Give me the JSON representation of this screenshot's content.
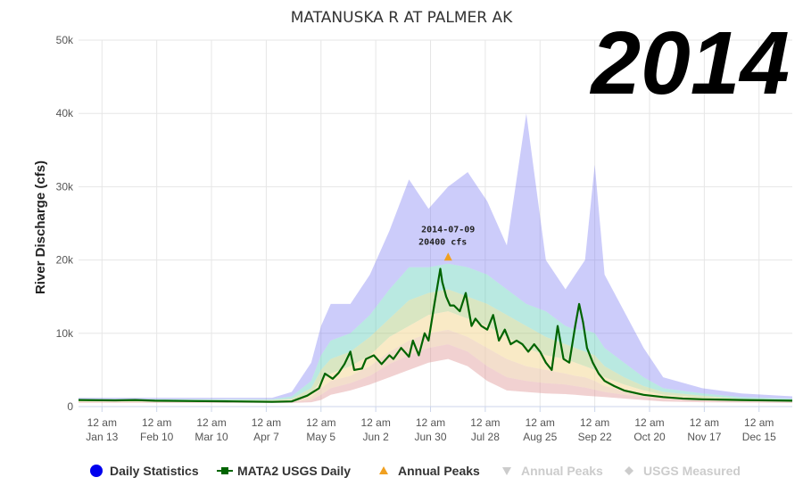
{
  "year_label": "2014",
  "chart_data": {
    "type": "area",
    "title": "MATANUSKA R AT PALMER AK",
    "xlabel": "",
    "ylabel": "River Discharge (cfs)",
    "ylim": [
      0,
      50000
    ],
    "y_ticks": [
      0,
      10000,
      20000,
      30000,
      40000,
      50000
    ],
    "y_tick_labels": [
      "0",
      "10k",
      "20k",
      "30k",
      "40k",
      "50k"
    ],
    "x_ticks": [
      {
        "line1": "12 am",
        "line2": "Jan 13",
        "day": 13
      },
      {
        "line1": "12 am",
        "line2": "Feb 10",
        "day": 41
      },
      {
        "line1": "12 am",
        "line2": "Mar 10",
        "day": 69
      },
      {
        "line1": "12 am",
        "line2": "Apr 7",
        "day": 97
      },
      {
        "line1": "12 am",
        "line2": "May 5",
        "day": 125
      },
      {
        "line1": "12 am",
        "line2": "Jun 2",
        "day": 153
      },
      {
        "line1": "12 am",
        "line2": "Jun 30",
        "day": 181
      },
      {
        "line1": "12 am",
        "line2": "Jul 28",
        "day": 209
      },
      {
        "line1": "12 am",
        "line2": "Aug 25",
        "day": 237
      },
      {
        "line1": "12 am",
        "line2": "Sep 22",
        "day": 265
      },
      {
        "line1": "12 am",
        "line2": "Oct 20",
        "day": 293
      },
      {
        "line1": "12 am",
        "line2": "Nov 17",
        "day": 321
      },
      {
        "line1": "12 am",
        "line2": "Dec 15",
        "day": 349
      }
    ],
    "x_range_days": [
      1,
      366
    ],
    "grid": true,
    "legend_position": "bottom",
    "series": [
      {
        "name": "Daily Statistics",
        "kind": "bands",
        "color": "#0000ee",
        "x_days": [
          1,
          100,
          110,
          120,
          125,
          130,
          140,
          150,
          160,
          170,
          180,
          190,
          200,
          210,
          220,
          230,
          240,
          250,
          255,
          260,
          265,
          270,
          280,
          290,
          300,
          320,
          340,
          366
        ],
        "max": [
          1200,
          1200,
          2000,
          6000,
          11000,
          14000,
          14000,
          18000,
          24000,
          31000,
          27000,
          30000,
          32000,
          28000,
          22000,
          40000,
          20000,
          16000,
          18000,
          20000,
          33000,
          18000,
          13000,
          8000,
          4000,
          2500,
          1800,
          1400
        ],
        "p90": [
          1000,
          1000,
          1400,
          3500,
          7000,
          9000,
          10000,
          12500,
          16000,
          19000,
          19000,
          19500,
          19000,
          18000,
          16000,
          14000,
          13000,
          11000,
          10500,
          10500,
          10000,
          8000,
          6000,
          4000,
          2500,
          1800,
          1300,
          1100
        ],
        "p75": [
          900,
          900,
          1100,
          2500,
          5000,
          6500,
          7500,
          9500,
          12000,
          14500,
          15500,
          16000,
          15000,
          14000,
          12500,
          11000,
          9500,
          8500,
          8000,
          7500,
          7000,
          5500,
          4000,
          2800,
          2000,
          1500,
          1100,
          950
        ],
        "p50": [
          800,
          800,
          900,
          1800,
          3500,
          4500,
          5500,
          7000,
          9500,
          11000,
          12500,
          13000,
          12000,
          11000,
          9500,
          8000,
          7000,
          6500,
          6000,
          5500,
          5000,
          4000,
          3000,
          2200,
          1600,
          1200,
          950,
          850
        ],
        "p25": [
          700,
          700,
          800,
          1300,
          2500,
          3500,
          4200,
          5500,
          7500,
          9000,
          10000,
          10500,
          9500,
          8000,
          6500,
          5500,
          5000,
          4500,
          4200,
          4000,
          3500,
          2800,
          2200,
          1700,
          1300,
          1000,
          850,
          750
        ],
        "p10": [
          600,
          600,
          650,
          900,
          1600,
          2500,
          3200,
          4200,
          5800,
          7000,
          8000,
          8500,
          7500,
          5500,
          4000,
          3500,
          3200,
          3000,
          2800,
          2600,
          2300,
          2000,
          1600,
          1300,
          1000,
          800,
          700,
          650
        ],
        "min": [
          500,
          500,
          500,
          600,
          900,
          1600,
          2200,
          3000,
          4000,
          5000,
          6000,
          6500,
          5500,
          3500,
          2200,
          2000,
          1800,
          1700,
          1600,
          1500,
          1400,
          1300,
          1100,
          900,
          700,
          600,
          550,
          500
        ]
      },
      {
        "name": "MATA2 USGS Daily",
        "kind": "line",
        "color": "#006400",
        "x_days": [
          1,
          20,
          30,
          40,
          60,
          80,
          100,
          110,
          118,
          124,
          127,
          131,
          134,
          137,
          140,
          142,
          146,
          148,
          152,
          156,
          160,
          162,
          166,
          170,
          172,
          175,
          178,
          180,
          183,
          186,
          187,
          189,
          191,
          193,
          196,
          199,
          202,
          204,
          207,
          210,
          213,
          216,
          219,
          222,
          225,
          228,
          231,
          234,
          237,
          240,
          243,
          246,
          249,
          252,
          255,
          257,
          259,
          261,
          264,
          267,
          270,
          275,
          280,
          290,
          300,
          310,
          320,
          340,
          366
        ],
        "y": [
          900,
          850,
          900,
          800,
          750,
          700,
          650,
          700,
          1500,
          2500,
          4500,
          3800,
          4600,
          5800,
          7500,
          5000,
          5200,
          6500,
          7000,
          5800,
          7000,
          6500,
          8000,
          6800,
          9000,
          7000,
          10000,
          9000,
          14000,
          18800,
          17000,
          15000,
          13800,
          13800,
          13000,
          15500,
          11000,
          12000,
          11000,
          10500,
          12500,
          9000,
          10500,
          8500,
          9000,
          8500,
          7500,
          8500,
          7500,
          6000,
          5000,
          11000,
          6500,
          6000,
          11000,
          14000,
          11500,
          8000,
          6000,
          4500,
          3500,
          2800,
          2200,
          1600,
          1300,
          1100,
          1000,
          900,
          800
        ]
      },
      {
        "name": "Annual Peaks",
        "kind": "marker",
        "color": "#f0a020",
        "points": [
          {
            "day": 190,
            "value": 20400,
            "date": "2014-07-09",
            "label": "20400 cfs"
          }
        ]
      },
      {
        "name": "Annual Peaks",
        "kind": "legend-only",
        "color": "#cccccc",
        "disabled": true
      },
      {
        "name": "USGS Measured",
        "kind": "legend-only",
        "color": "#cccccc",
        "disabled": true
      }
    ]
  }
}
